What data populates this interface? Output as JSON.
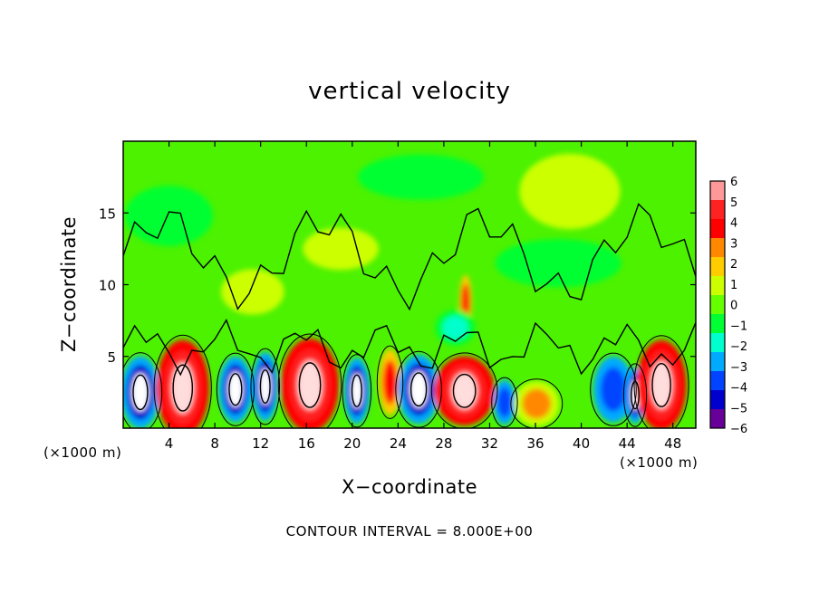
{
  "chart_data": {
    "type": "heatmap",
    "title": "vertical velocity",
    "xlabel": "X−coordinate",
    "ylabel": "Z−coordinate",
    "x_units": "(×1000 m)",
    "y_units": "(×1000 m)",
    "x_ticks": [
      4,
      8,
      12,
      16,
      20,
      24,
      28,
      32,
      36,
      40,
      44,
      48
    ],
    "y_ticks": [
      5,
      10,
      15
    ],
    "xlim": [
      0,
      50
    ],
    "ylim": [
      0,
      20
    ],
    "colorbar": {
      "ticks": [
        "6",
        "5",
        "4",
        "3",
        "2",
        "1",
        "0",
        "−1",
        "−2",
        "−3",
        "−4",
        "−5",
        "−6"
      ],
      "colors": [
        "#ff9999",
        "#ff2222",
        "#ff0000",
        "#ff8800",
        "#ffcc00",
        "#ccff00",
        "#66ff00",
        "#00ff33",
        "#00ffcc",
        "#00aaff",
        "#0044ff",
        "#0000cc",
        "#660099"
      ]
    },
    "footer": "CONTOUR INTERVAL =  8.000E+00",
    "cells": [
      {
        "x": 1.5,
        "z": 2.5,
        "value": -6,
        "rx": 1.5,
        "rz": 2.4
      },
      {
        "x": 5.2,
        "z": 2.8,
        "value": 6,
        "rx": 2.0,
        "rz": 3.2
      },
      {
        "x": 9.8,
        "z": 2.7,
        "value": -6,
        "rx": 1.3,
        "rz": 2.2
      },
      {
        "x": 12.4,
        "z": 2.9,
        "value": -5,
        "rx": 1.0,
        "rz": 2.3
      },
      {
        "x": 16.3,
        "z": 3.0,
        "value": 6,
        "rx": 2.2,
        "rz": 3.1
      },
      {
        "x": 20.4,
        "z": 2.6,
        "value": -5,
        "rx": 1.0,
        "rz": 2.2
      },
      {
        "x": 23.3,
        "z": 3.2,
        "value": 4,
        "rx": 0.9,
        "rz": 2.2
      },
      {
        "x": 25.8,
        "z": 2.7,
        "value": -6,
        "rx": 1.6,
        "rz": 2.3
      },
      {
        "x": 29.8,
        "z": 2.6,
        "value": 6,
        "rx": 2.3,
        "rz": 2.3
      },
      {
        "x": 33.3,
        "z": 1.8,
        "value": -4,
        "rx": 0.9,
        "rz": 1.5
      },
      {
        "x": 36.1,
        "z": 1.7,
        "value": 3,
        "rx": 1.8,
        "rz": 1.5
      },
      {
        "x": 42.8,
        "z": 2.7,
        "value": -4,
        "rx": 1.6,
        "rz": 2.2
      },
      {
        "x": 44.7,
        "z": 2.3,
        "value": -5,
        "rx": 0.8,
        "rz": 1.9
      },
      {
        "x": 47.0,
        "z": 3.0,
        "value": 6,
        "rx": 1.9,
        "rz": 3.0
      },
      {
        "x": 29.9,
        "z": 8.8,
        "value": 4,
        "rx": 0.5,
        "rz": 1.8
      },
      {
        "x": 29.0,
        "z": 7.0,
        "value": -2,
        "rx": 1.6,
        "rz": 1.2
      },
      {
        "x": 11.3,
        "z": 9.5,
        "value": 1,
        "rx": 2.5,
        "rz": 1.5
      },
      {
        "x": 4.0,
        "z": 14.8,
        "value": -1,
        "rx": 3.5,
        "rz": 2.0
      },
      {
        "x": 26.0,
        "z": 17.5,
        "value": -1,
        "rx": 5.0,
        "rz": 1.5
      },
      {
        "x": 39.0,
        "z": 16.5,
        "value": 1,
        "rx": 4.0,
        "rz": 2.5
      },
      {
        "x": 38.0,
        "z": 11.5,
        "value": -1,
        "rx": 5.0,
        "rz": 1.6
      },
      {
        "x": 19.0,
        "z": 12.5,
        "value": 1,
        "rx": 3.0,
        "rz": 1.4
      }
    ]
  }
}
